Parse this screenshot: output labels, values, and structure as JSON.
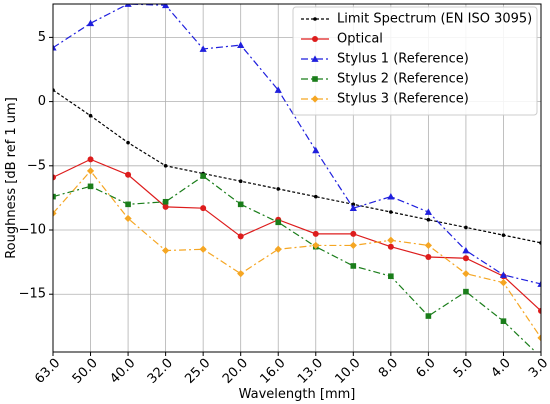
{
  "chart_data": {
    "type": "line",
    "xlabel": "Wavelength [mm]",
    "ylabel": "Roughness [dB ref 1 um]",
    "categories": [
      "63.0",
      "50.0",
      "40.0",
      "32.0",
      "25.0",
      "20.0",
      "16.0",
      "13.0",
      "10.0",
      "8.0",
      "6.0",
      "5.0",
      "4.0",
      "3.0"
    ],
    "ylim": [
      -19.5,
      7.6
    ],
    "yticks": [
      5,
      0,
      -5,
      -10,
      -15
    ],
    "ytick_labels": [
      "5",
      "0",
      "−5",
      "−10",
      "−15"
    ],
    "grid": true,
    "legend_position": "top-right",
    "series": [
      {
        "name": "Limit Spectrum (EN ISO 3095)",
        "color": "#000000",
        "dash": "3,2",
        "marker": "point",
        "values": [
          0.9,
          -1.1,
          -3.2,
          -5.0,
          -5.6,
          -6.2,
          -6.8,
          -7.4,
          -8.0,
          -8.6,
          -9.2,
          -9.8,
          -10.4,
          -11.0
        ]
      },
      {
        "name": "Optical",
        "color": "#dd1c1c",
        "dash": "",
        "marker": "circle",
        "values": [
          -5.9,
          -4.5,
          -5.7,
          -8.2,
          -8.3,
          -10.5,
          -9.2,
          -10.3,
          -10.3,
          -11.3,
          -12.1,
          -12.2,
          -13.6,
          -16.3
        ]
      },
      {
        "name": "Stylus 1 (Reference)",
        "color": "#1f1fdd",
        "dash": "7,3,2,3",
        "marker": "triangle",
        "values": [
          4.2,
          6.1,
          7.6,
          7.5,
          4.1,
          4.4,
          0.9,
          -3.8,
          -8.3,
          -7.4,
          -8.6,
          -11.6,
          -13.5,
          -14.2
        ]
      },
      {
        "name": "Stylus 2 (Reference)",
        "color": "#1a7d1a",
        "dash": "7,3,2,3",
        "marker": "square",
        "values": [
          -7.4,
          -6.6,
          -8.0,
          -7.8,
          -5.8,
          -8.0,
          -9.4,
          -11.3,
          -12.8,
          -13.6,
          -16.7,
          -14.8,
          -17.1,
          -19.9
        ]
      },
      {
        "name": "Stylus 3 (Reference)",
        "color": "#f5a623",
        "dash": "7,3,2,3",
        "marker": "diamond",
        "values": [
          -8.7,
          -5.4,
          -9.1,
          -11.6,
          -11.5,
          -13.4,
          -11.5,
          -11.2,
          -11.2,
          -10.8,
          -11.2,
          -13.4,
          -14.1,
          -18.4
        ]
      }
    ]
  }
}
